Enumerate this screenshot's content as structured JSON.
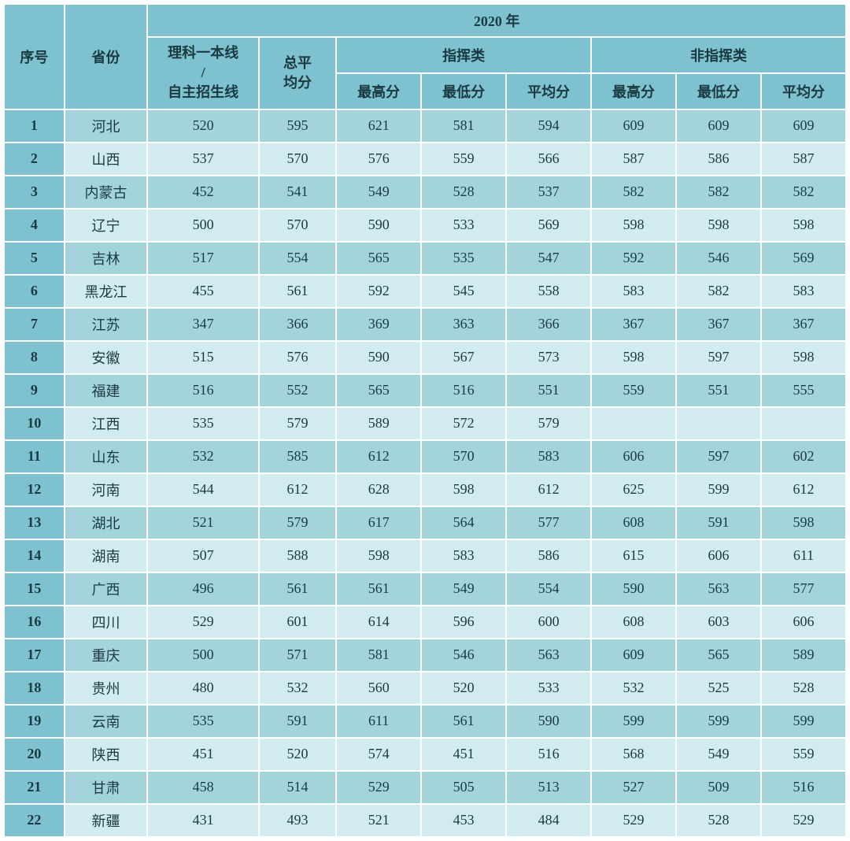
{
  "headers": {
    "seq": "序号",
    "province": "省份",
    "year": "2020 年",
    "line_label_1": "理科一本线",
    "line_label_2": "/",
    "line_label_3": "自主招生线",
    "total_avg_1": "总平",
    "total_avg_2": "均分",
    "command": "指挥类",
    "noncommand": "非指挥类",
    "max": "最高分",
    "min": "最低分",
    "avg": "平均分"
  },
  "colors": {
    "header_bg": "#7fc2cf",
    "row_odd_bg": "#a3d4db",
    "row_even_bg": "#d1ebef",
    "border": "#ffffff",
    "text": "#1a3a42"
  },
  "rows": [
    {
      "seq": "1",
      "prov": "河北",
      "line": "520",
      "avg": "595",
      "c_max": "621",
      "c_min": "581",
      "c_avg": "594",
      "n_max": "609",
      "n_min": "609",
      "n_avg": "609"
    },
    {
      "seq": "2",
      "prov": "山西",
      "line": "537",
      "avg": "570",
      "c_max": "576",
      "c_min": "559",
      "c_avg": "566",
      "n_max": "587",
      "n_min": "586",
      "n_avg": "587"
    },
    {
      "seq": "3",
      "prov": "内蒙古",
      "line": "452",
      "avg": "541",
      "c_max": "549",
      "c_min": "528",
      "c_avg": "537",
      "n_max": "582",
      "n_min": "582",
      "n_avg": "582"
    },
    {
      "seq": "4",
      "prov": "辽宁",
      "line": "500",
      "avg": "570",
      "c_max": "590",
      "c_min": "533",
      "c_avg": "569",
      "n_max": "598",
      "n_min": "598",
      "n_avg": "598"
    },
    {
      "seq": "5",
      "prov": "吉林",
      "line": "517",
      "avg": "554",
      "c_max": "565",
      "c_min": "535",
      "c_avg": "547",
      "n_max": "592",
      "n_min": "546",
      "n_avg": "569"
    },
    {
      "seq": "6",
      "prov": "黑龙江",
      "line": "455",
      "avg": "561",
      "c_max": "592",
      "c_min": "545",
      "c_avg": "558",
      "n_max": "583",
      "n_min": "582",
      "n_avg": "583"
    },
    {
      "seq": "7",
      "prov": "江苏",
      "line": "347",
      "avg": "366",
      "c_max": "369",
      "c_min": "363",
      "c_avg": "366",
      "n_max": "367",
      "n_min": "367",
      "n_avg": "367"
    },
    {
      "seq": "8",
      "prov": "安徽",
      "line": "515",
      "avg": "576",
      "c_max": "590",
      "c_min": "567",
      "c_avg": "573",
      "n_max": "598",
      "n_min": "597",
      "n_avg": "598"
    },
    {
      "seq": "9",
      "prov": "福建",
      "line": "516",
      "avg": "552",
      "c_max": "565",
      "c_min": "516",
      "c_avg": "551",
      "n_max": "559",
      "n_min": "551",
      "n_avg": "555"
    },
    {
      "seq": "10",
      "prov": "江西",
      "line": "535",
      "avg": "579",
      "c_max": "589",
      "c_min": "572",
      "c_avg": "579",
      "n_max": "",
      "n_min": "",
      "n_avg": ""
    },
    {
      "seq": "11",
      "prov": "山东",
      "line": "532",
      "avg": "585",
      "c_max": "612",
      "c_min": "570",
      "c_avg": "583",
      "n_max": "606",
      "n_min": "597",
      "n_avg": "602"
    },
    {
      "seq": "12",
      "prov": "河南",
      "line": "544",
      "avg": "612",
      "c_max": "628",
      "c_min": "598",
      "c_avg": "612",
      "n_max": "625",
      "n_min": "599",
      "n_avg": "612"
    },
    {
      "seq": "13",
      "prov": "湖北",
      "line": "521",
      "avg": "579",
      "c_max": "617",
      "c_min": "564",
      "c_avg": "577",
      "n_max": "608",
      "n_min": "591",
      "n_avg": "598"
    },
    {
      "seq": "14",
      "prov": "湖南",
      "line": "507",
      "avg": "588",
      "c_max": "598",
      "c_min": "583",
      "c_avg": "586",
      "n_max": "615",
      "n_min": "606",
      "n_avg": "611"
    },
    {
      "seq": "15",
      "prov": "广西",
      "line": "496",
      "avg": "561",
      "c_max": "561",
      "c_min": "549",
      "c_avg": "554",
      "n_max": "590",
      "n_min": "563",
      "n_avg": "577"
    },
    {
      "seq": "16",
      "prov": "四川",
      "line": "529",
      "avg": "601",
      "c_max": "614",
      "c_min": "596",
      "c_avg": "600",
      "n_max": "608",
      "n_min": "603",
      "n_avg": "606"
    },
    {
      "seq": "17",
      "prov": "重庆",
      "line": "500",
      "avg": "571",
      "c_max": "581",
      "c_min": "546",
      "c_avg": "563",
      "n_max": "609",
      "n_min": "565",
      "n_avg": "589"
    },
    {
      "seq": "18",
      "prov": "贵州",
      "line": "480",
      "avg": "532",
      "c_max": "560",
      "c_min": "520",
      "c_avg": "533",
      "n_max": "532",
      "n_min": "525",
      "n_avg": "528"
    },
    {
      "seq": "19",
      "prov": "云南",
      "line": "535",
      "avg": "591",
      "c_max": "611",
      "c_min": "561",
      "c_avg": "590",
      "n_max": "599",
      "n_min": "599",
      "n_avg": "599"
    },
    {
      "seq": "20",
      "prov": "陕西",
      "line": "451",
      "avg": "520",
      "c_max": "574",
      "c_min": "451",
      "c_avg": "516",
      "n_max": "568",
      "n_min": "549",
      "n_avg": "559"
    },
    {
      "seq": "21",
      "prov": "甘肃",
      "line": "458",
      "avg": "514",
      "c_max": "529",
      "c_min": "505",
      "c_avg": "513",
      "n_max": "527",
      "n_min": "509",
      "n_avg": "516"
    },
    {
      "seq": "22",
      "prov": "新疆",
      "line": "431",
      "avg": "493",
      "c_max": "521",
      "c_min": "453",
      "c_avg": "484",
      "n_max": "529",
      "n_min": "528",
      "n_avg": "529"
    }
  ]
}
